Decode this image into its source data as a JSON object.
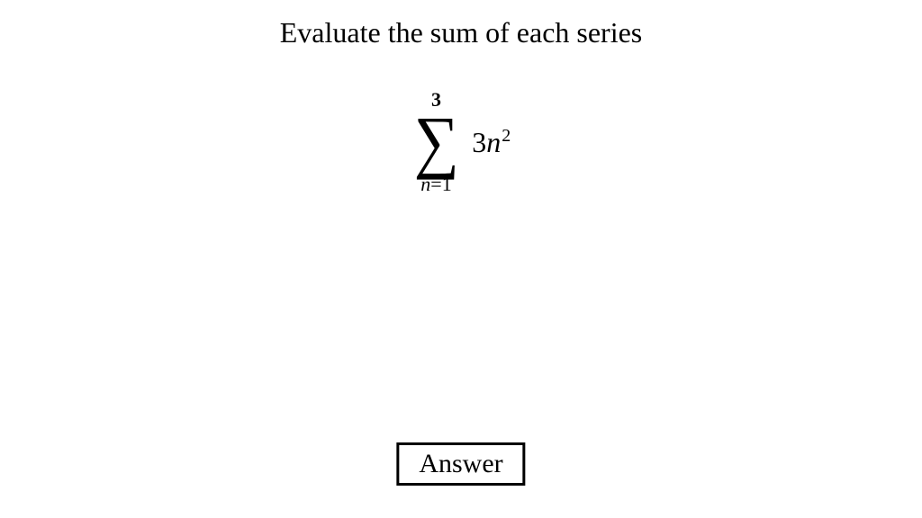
{
  "title": "Evaluate the sum of each series",
  "formula": {
    "upper_limit": "3",
    "sigma": "∑",
    "lower_var": "n",
    "lower_eq": "=",
    "lower_val": "1",
    "expr_coef": "3",
    "expr_var": "n",
    "expr_exp": "2"
  },
  "button": {
    "label": "Answer"
  },
  "styling": {
    "background_color": "#ffffff",
    "text_color": "#000000",
    "title_fontsize": 32,
    "sigma_fontsize": 78,
    "limits_fontsize": 22,
    "expression_fontsize": 32,
    "button_fontsize": 30,
    "button_border_width": 3,
    "font_family": "Times New Roman"
  }
}
